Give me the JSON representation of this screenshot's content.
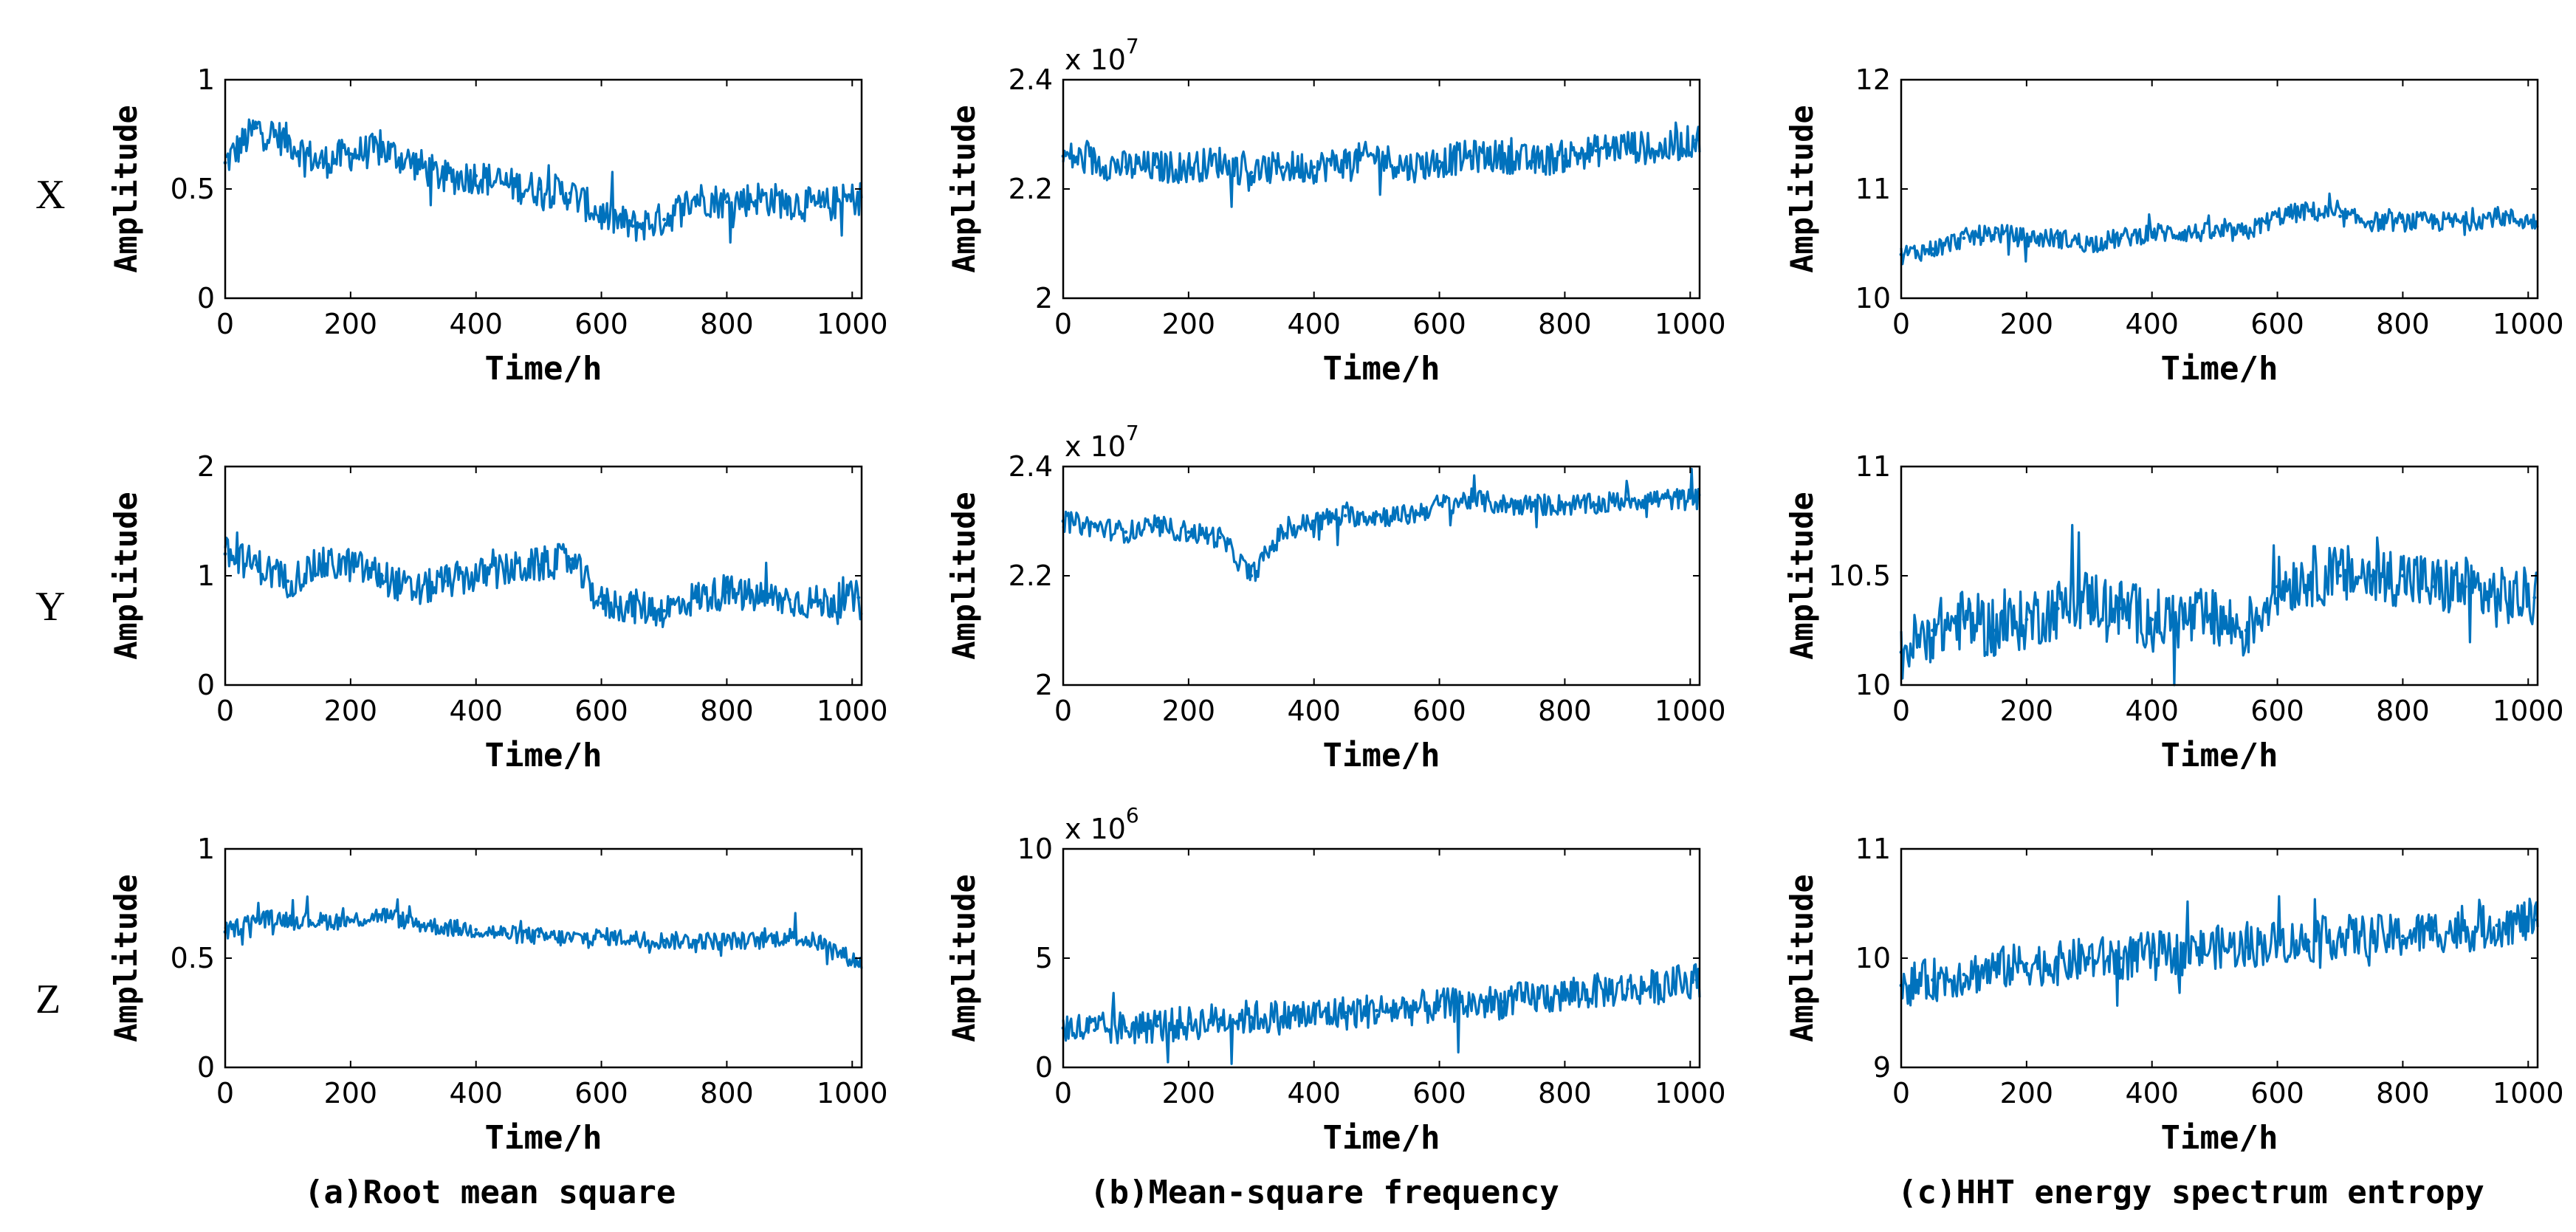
{
  "figure": {
    "row_labels": [
      "X",
      "Y",
      "Z"
    ],
    "captions": [
      "(a)Root mean square",
      "(b)Mean-square frequency",
      "(c)HHT energy spectrum entropy"
    ]
  },
  "style": {
    "line_color": "#0072BD",
    "axis_color": "#000000"
  },
  "chart_data": [
    {
      "id": "a1",
      "type": "line",
      "axis": "X",
      "feature": "Root mean square",
      "xlabel": "Time/h",
      "ylabel": "Amplitude",
      "xlim": [
        0,
        1015
      ],
      "ylim": [
        0,
        1
      ],
      "xticks": [
        0,
        200,
        400,
        600,
        800,
        1000
      ],
      "yticks": [
        0,
        0.5,
        1
      ],
      "ytick_labels": [
        "0",
        "0.5",
        "1"
      ],
      "exponent": "",
      "x": [
        0,
        50,
        100,
        150,
        200,
        250,
        300,
        350,
        400,
        450,
        500,
        550,
        600,
        650,
        700,
        750,
        800,
        850,
        900,
        950,
        1010
      ],
      "values": [
        0.62,
        0.78,
        0.72,
        0.62,
        0.66,
        0.68,
        0.62,
        0.55,
        0.56,
        0.52,
        0.5,
        0.48,
        0.38,
        0.33,
        0.36,
        0.46,
        0.44,
        0.46,
        0.44,
        0.42,
        0.46
      ],
      "noise": 0.08
    },
    {
      "id": "b1",
      "type": "line",
      "axis": "X",
      "feature": "Mean-square frequency",
      "xlabel": "Time/h",
      "ylabel": "Amplitude",
      "xlim": [
        0,
        1015
      ],
      "ylim": [
        2,
        2.4
      ],
      "xticks": [
        0,
        200,
        400,
        600,
        800,
        1000
      ],
      "yticks": [
        2,
        2.2,
        2.4
      ],
      "ytick_labels": [
        "2",
        "2.2",
        "2.4"
      ],
      "exponent": "7",
      "x": [
        0,
        50,
        100,
        150,
        200,
        250,
        300,
        350,
        400,
        450,
        500,
        550,
        600,
        650,
        700,
        750,
        800,
        850,
        900,
        950,
        1010
      ],
      "values": [
        2.26,
        2.25,
        2.24,
        2.24,
        2.24,
        2.25,
        2.23,
        2.24,
        2.24,
        2.25,
        2.26,
        2.24,
        2.25,
        2.26,
        2.26,
        2.25,
        2.26,
        2.27,
        2.28,
        2.27,
        2.29
      ],
      "noise": 0.03
    },
    {
      "id": "c1",
      "type": "line",
      "axis": "X",
      "feature": "HHT energy spectrum entropy",
      "xlabel": "Time/h",
      "ylabel": "Amplitude",
      "xlim": [
        0,
        1015
      ],
      "ylim": [
        10,
        12
      ],
      "xticks": [
        0,
        200,
        400,
        600,
        800,
        1000
      ],
      "yticks": [
        10,
        11,
        12
      ],
      "ytick_labels": [
        "10",
        "11",
        "12"
      ],
      "exponent": "",
      "x": [
        0,
        50,
        100,
        150,
        200,
        250,
        300,
        350,
        400,
        450,
        500,
        550,
        600,
        650,
        700,
        750,
        800,
        850,
        900,
        950,
        1010
      ],
      "values": [
        10.4,
        10.45,
        10.55,
        10.6,
        10.55,
        10.55,
        10.5,
        10.55,
        10.6,
        10.6,
        10.6,
        10.6,
        10.75,
        10.8,
        10.75,
        10.7,
        10.7,
        10.7,
        10.7,
        10.75,
        10.7
      ],
      "noise": 0.09
    },
    {
      "id": "a2",
      "type": "line",
      "axis": "Y",
      "feature": "Root mean square",
      "xlabel": "Time/h",
      "ylabel": "Amplitude",
      "xlim": [
        0,
        1015
      ],
      "ylim": [
        0,
        2
      ],
      "xticks": [
        0,
        200,
        400,
        600,
        800,
        1000
      ],
      "yticks": [
        0,
        1,
        2
      ],
      "ytick_labels": [
        "0",
        "1",
        "2"
      ],
      "exponent": "",
      "x": [
        0,
        50,
        100,
        150,
        200,
        250,
        300,
        350,
        400,
        450,
        500,
        550,
        600,
        650,
        700,
        750,
        800,
        850,
        900,
        950,
        1010
      ],
      "values": [
        1.2,
        1.1,
        0.95,
        1.1,
        1.1,
        1.0,
        0.85,
        0.95,
        1.0,
        1.05,
        1.1,
        1.15,
        0.75,
        0.72,
        0.68,
        0.8,
        0.85,
        0.8,
        0.78,
        0.75,
        0.8
      ],
      "noise": 0.16
    },
    {
      "id": "b2",
      "type": "line",
      "axis": "Y",
      "feature": "Mean-square frequency",
      "xlabel": "Time/h",
      "ylabel": "Amplitude",
      "xlim": [
        0,
        1015
      ],
      "ylim": [
        2,
        2.4
      ],
      "xticks": [
        0,
        200,
        400,
        600,
        800,
        1000
      ],
      "yticks": [
        2,
        2.2,
        2.4
      ],
      "ytick_labels": [
        "2",
        "2.2",
        "2.4"
      ],
      "exponent": "7",
      "x": [
        0,
        50,
        100,
        150,
        200,
        250,
        300,
        350,
        400,
        450,
        500,
        550,
        600,
        650,
        700,
        750,
        800,
        850,
        900,
        950,
        1010
      ],
      "values": [
        2.3,
        2.29,
        2.28,
        2.29,
        2.28,
        2.27,
        2.2,
        2.28,
        2.3,
        2.31,
        2.31,
        2.31,
        2.33,
        2.34,
        2.33,
        2.33,
        2.33,
        2.33,
        2.34,
        2.34,
        2.34
      ],
      "noise": 0.02
    },
    {
      "id": "c2",
      "type": "line",
      "axis": "Y",
      "feature": "HHT energy spectrum entropy",
      "xlabel": "Time/h",
      "ylabel": "Amplitude",
      "xlim": [
        0,
        1015
      ],
      "ylim": [
        10,
        11
      ],
      "xticks": [
        0,
        200,
        400,
        600,
        800,
        1000
      ],
      "yticks": [
        10,
        10.5,
        11
      ],
      "ytick_labels": [
        "10",
        "10.5",
        "11"
      ],
      "exponent": "",
      "x": [
        0,
        50,
        100,
        150,
        200,
        250,
        300,
        350,
        400,
        450,
        500,
        550,
        600,
        650,
        700,
        750,
        800,
        850,
        900,
        950,
        1010
      ],
      "values": [
        10.15,
        10.25,
        10.3,
        10.25,
        10.3,
        10.35,
        10.4,
        10.35,
        10.3,
        10.3,
        10.3,
        10.25,
        10.45,
        10.5,
        10.5,
        10.5,
        10.5,
        10.45,
        10.45,
        10.4,
        10.4
      ],
      "noise": 0.14
    },
    {
      "id": "a3",
      "type": "line",
      "axis": "Z",
      "feature": "Root mean square",
      "xlabel": "Time/h",
      "ylabel": "Amplitude",
      "xlim": [
        0,
        1015
      ],
      "ylim": [
        0,
        1
      ],
      "xticks": [
        0,
        200,
        400,
        600,
        800,
        1000
      ],
      "yticks": [
        0,
        0.5,
        1
      ],
      "ytick_labels": [
        "0",
        "0.5",
        "1"
      ],
      "exponent": "",
      "x": [
        0,
        50,
        100,
        150,
        200,
        250,
        300,
        350,
        400,
        450,
        500,
        550,
        600,
        650,
        700,
        750,
        800,
        850,
        900,
        950,
        1010
      ],
      "values": [
        0.62,
        0.68,
        0.68,
        0.67,
        0.67,
        0.7,
        0.66,
        0.64,
        0.63,
        0.61,
        0.6,
        0.59,
        0.6,
        0.59,
        0.58,
        0.58,
        0.58,
        0.58,
        0.6,
        0.57,
        0.48
      ],
      "noise": 0.04
    },
    {
      "id": "b3",
      "type": "line",
      "axis": "Z",
      "feature": "Mean-square frequency",
      "xlabel": "Time/h",
      "ylabel": "Amplitude",
      "xlim": [
        0,
        1015
      ],
      "ylim": [
        0,
        10
      ],
      "xticks": [
        0,
        200,
        400,
        600,
        800,
        1000
      ],
      "yticks": [
        0,
        5,
        10
      ],
      "ytick_labels": [
        "0",
        "5",
        "10"
      ],
      "exponent": "6",
      "x": [
        0,
        50,
        100,
        150,
        200,
        250,
        300,
        350,
        400,
        450,
        500,
        550,
        600,
        650,
        700,
        750,
        800,
        850,
        900,
        950,
        1010
      ],
      "values": [
        1.8,
        1.7,
        1.8,
        1.9,
        2.0,
        2.2,
        2.3,
        2.3,
        2.4,
        2.5,
        2.6,
        2.7,
        2.8,
        2.9,
        3.0,
        3.2,
        3.3,
        3.5,
        3.6,
        3.7,
        4.0
      ],
      "noise": 0.8
    },
    {
      "id": "c3",
      "type": "line",
      "axis": "Z",
      "feature": "HHT energy spectrum entropy",
      "xlabel": "Time/h",
      "ylabel": "Amplitude",
      "xlim": [
        0,
        1015
      ],
      "ylim": [
        9,
        11
      ],
      "xticks": [
        0,
        200,
        400,
        600,
        800,
        1000
      ],
      "yticks": [
        9,
        10,
        11
      ],
      "ytick_labels": [
        "9",
        "10",
        "11"
      ],
      "exponent": "",
      "x": [
        0,
        50,
        100,
        150,
        200,
        250,
        300,
        350,
        400,
        450,
        500,
        550,
        600,
        650,
        700,
        750,
        800,
        850,
        900,
        950,
        1010
      ],
      "values": [
        9.75,
        9.8,
        9.85,
        9.9,
        9.95,
        9.95,
        10.0,
        10.0,
        10.05,
        10.05,
        10.1,
        10.1,
        10.15,
        10.15,
        10.2,
        10.2,
        10.2,
        10.25,
        10.25,
        10.3,
        10.35
      ],
      "noise": 0.2
    }
  ]
}
